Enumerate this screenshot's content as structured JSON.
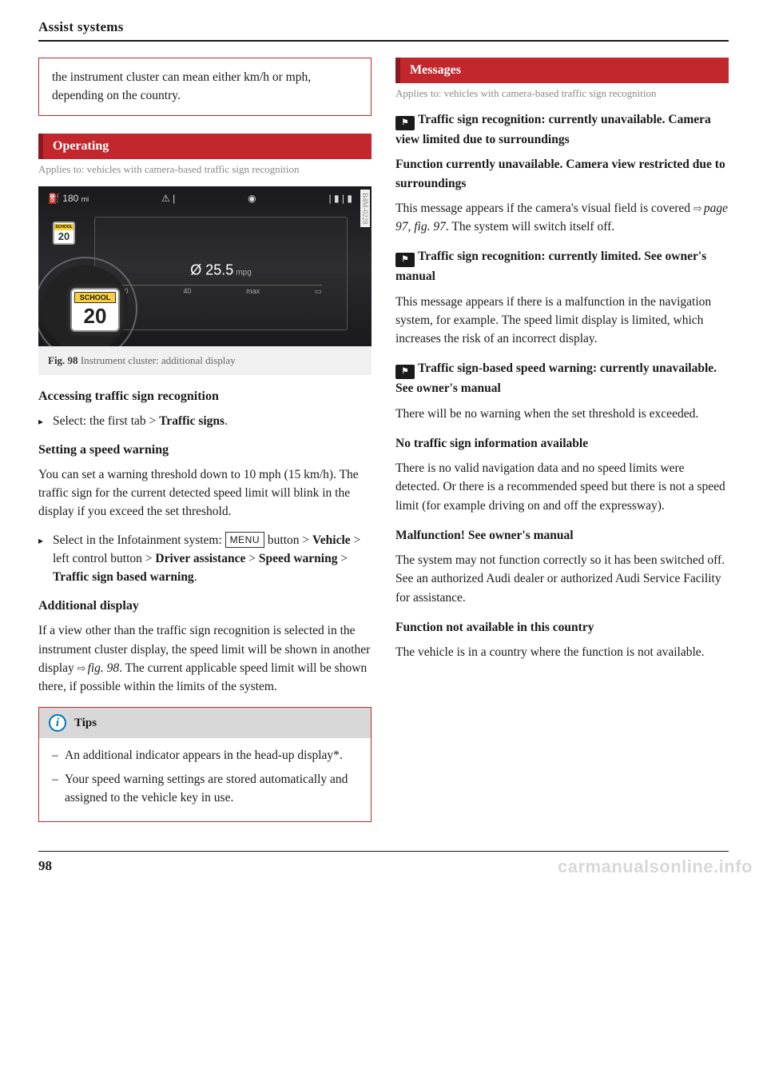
{
  "header": {
    "title": "Assist systems"
  },
  "footer": {
    "page": "98",
    "watermark": "carmanualsonline.info"
  },
  "left": {
    "noteBox": "the instrument cluster can mean either km/h or mph, depending on the country.",
    "opHeading": "Operating",
    "opAppliesTo": "Applies to: vehicles with camera-based traffic sign recognition",
    "figure": {
      "sideCode": "B4M-0228",
      "rangeLabel": "180",
      "rangeUnit": "mi",
      "mpgSym": "Ø",
      "mpgVal": "25.5",
      "mpgUnit": "mpg",
      "scale": [
        "30",
        "40",
        "max"
      ],
      "smallSignLabel": "SCHOOL",
      "smallSignVal": "20",
      "bigSignLabel": "SCHOOL",
      "bigSignVal": "20",
      "captionBold": "Fig. 98",
      "caption": "Instrument cluster: additional display"
    },
    "sub1": "Accessing traffic sign recognition",
    "step1_a": "Select: the first tab > ",
    "step1_b": "Traffic signs",
    "step1_c": ".",
    "sub2": "Setting a speed warning",
    "para2": "You can set a warning threshold down to 10 mph (15 km/h). The traffic sign for the current detected speed limit will blink in the display if you exceed the set threshold.",
    "step2_a": "Select in the Infotainment system: ",
    "step2_menu": "MENU",
    "step2_b": " button > ",
    "step2_c": "Vehicle",
    "step2_d": " > left control button > ",
    "step2_e": "Driver assistance",
    "step2_f": " > ",
    "step2_g": "Speed warning",
    "step2_h": " > ",
    "step2_i": "Traffic sign based warning",
    "step2_j": ".",
    "sub3": "Additional display",
    "para3_a": "If a view other than the traffic sign recognition is selected in the instrument cluster display, the speed limit will be shown in another display ",
    "para3_ref": "fig. 98",
    "para3_b": ". The current applicable speed limit will be shown there, if possible within the limits of the system.",
    "tipsTitle": "Tips",
    "tip1": "An additional indicator appears in the head-up display*.",
    "tip2": "Your speed warning settings are stored automatically and assigned to the vehicle key in use."
  },
  "right": {
    "msgHeading": "Messages",
    "msgAppliesTo": "Applies to: vehicles with camera-based traffic sign recognition",
    "m1_title": "Traffic sign recognition: currently unavailable. Camera view limited due to surroundings",
    "m1b_title": "Function currently unavailable. Camera view restricted due to surroundings",
    "m1_body_a": "This message appears if the camera's visual field is covered ",
    "m1_ref": "page 97, fig. 97",
    "m1_body_b": ". The system will switch itself off.",
    "m2_title": "Traffic sign recognition: currently limited. See owner's manual",
    "m2_body": "This message appears if there is a malfunction in the navigation system, for example. The speed limit display is limited, which increases the risk of an incorrect display.",
    "m3_title": "Traffic sign-based speed warning: currently unavailable. See owner's manual",
    "m3_body": "There will be no warning when the set threshold is exceeded.",
    "m4_title": "No traffic sign information available",
    "m4_body": "There is no valid navigation data and no speed limits were detected. Or there is a recommended speed but there is not a speed limit (for example driving on and off the expressway).",
    "m5_title": "Malfunction! See owner's manual",
    "m5_body": "The system may not function correctly so it has been switched off. See an authorized Audi dealer or authorized Audi Service Facility for assistance.",
    "m6_title": "Function not available in this country",
    "m6_body": "The vehicle is in a country where the function is not available."
  }
}
